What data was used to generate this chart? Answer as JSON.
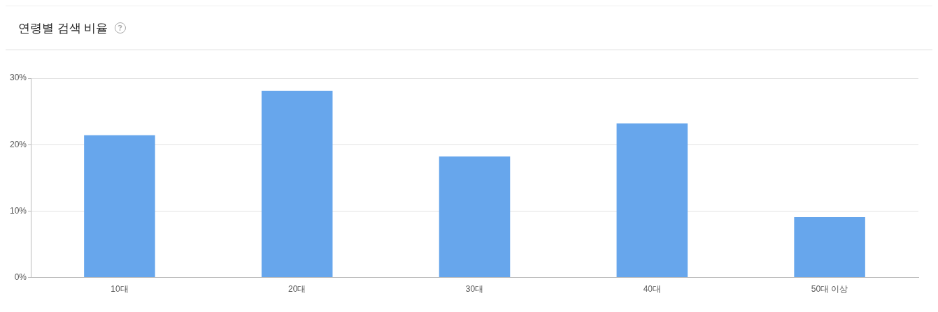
{
  "chart_data": {
    "type": "bar",
    "title": "연령별 검색 비율",
    "categories": [
      "10대",
      "20대",
      "30대",
      "40대",
      "50대 이상"
    ],
    "values": [
      21.4,
      28.1,
      18.2,
      23.2,
      9.1
    ],
    "color": "#67a6ec",
    "ylim": [
      0,
      30
    ],
    "yticks": [
      {
        "value": 0,
        "label": "0%"
      },
      {
        "value": 10,
        "label": "10%"
      },
      {
        "value": 20,
        "label": "20%"
      },
      {
        "value": 30,
        "label": "30%"
      }
    ],
    "grid": "y",
    "legend": false
  }
}
